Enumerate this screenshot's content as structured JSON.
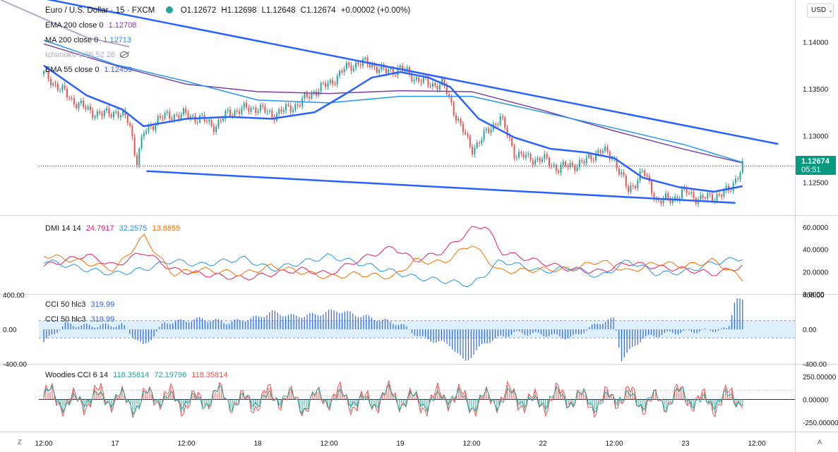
{
  "header": {
    "symbol": "Euro / U.S. Dollar · 15 · FXCM",
    "open": "O1.12672",
    "high": "H1.12698",
    "low": "L1.12648",
    "close": "C1.12674",
    "change": "+0.00002 (+0.00%)",
    "currency": "USD",
    "currency_caret": "⌄"
  },
  "indicators": {
    "ema200": {
      "label": "EMA 200 close 0",
      "value": "1.12708",
      "color": "#7b3fa8"
    },
    "ma200": {
      "label": "MA 200 close 0",
      "value": "1.12713",
      "color": "#2196f3"
    },
    "ichimoku": {
      "label": "Ichimoku 9 26 52 26",
      "color": "#b8a6c8"
    },
    "ema55": {
      "label": "EMA 55 close 0",
      "value": "1.12459",
      "color": "#2962ff"
    },
    "dmi": {
      "label": "DMI 14 14",
      "adx": "24.7917",
      "plus_di": "32.2575",
      "minus_di": "13.6855"
    },
    "cci1": {
      "label": "CCI 50 hlc3",
      "value": "319.99"
    },
    "cci2": {
      "label": "CCI 50 hlc3",
      "value": "319.99"
    },
    "woodies": {
      "label": "Woodies CCI 6 14",
      "v1": "118.35814",
      "v2": "72.19796",
      "v3": "118.35814"
    }
  },
  "price_badge": {
    "price": "1.12674",
    "countdown": "05:51",
    "color": "#089981"
  },
  "bottom_corners": {
    "left": "Z",
    "right": "A"
  },
  "chart_data": [
    {
      "type": "line",
      "name": "price",
      "ylim": [
        1.1215,
        1.1445
      ],
      "y_ticks": [
        "1.14000",
        "1.13500",
        "1.13000",
        "1.12500"
      ],
      "y_tick_values": [
        1.14,
        1.135,
        1.13,
        1.125
      ],
      "x_ticks": [
        "12:00",
        "17",
        "12:00",
        "18",
        "12:00",
        "19",
        "12:00",
        "22",
        "12:00",
        "23",
        "12:00"
      ],
      "x_tick_values": [
        0,
        0.5,
        1,
        1.5,
        2,
        2.5,
        3,
        3.5,
        4,
        4.5,
        5
      ],
      "x_range": [
        0,
        5.05
      ],
      "x_last": 4.9,
      "series": [
        {
          "role": "close",
          "color": "#ef5350",
          "x": [
            0,
            0.1,
            0.2,
            0.3,
            0.4,
            0.5,
            0.6,
            0.65,
            0.7,
            0.8,
            0.9,
            1.0,
            1.1,
            1.2,
            1.3,
            1.4,
            1.5,
            1.6,
            1.7,
            1.8,
            1.9,
            2.0,
            2.1,
            2.2,
            2.3,
            2.4,
            2.5,
            2.6,
            2.7,
            2.8,
            2.9,
            3.0,
            3.1,
            3.2,
            3.3,
            3.4,
            3.5,
            3.6,
            3.7,
            3.8,
            3.9,
            4.0,
            4.1,
            4.2,
            4.3,
            4.4,
            4.5,
            4.6,
            4.7,
            4.8,
            4.9
          ],
          "values": [
            1.1366,
            1.1352,
            1.1338,
            1.1328,
            1.1322,
            1.1326,
            1.1315,
            1.1272,
            1.1302,
            1.1318,
            1.1322,
            1.1322,
            1.1318,
            1.131,
            1.1325,
            1.1328,
            1.133,
            1.1322,
            1.1328,
            1.1335,
            1.1348,
            1.1355,
            1.137,
            1.1378,
            1.1376,
            1.1368,
            1.1372,
            1.1362,
            1.1355,
            1.1355,
            1.1318,
            1.1285,
            1.1302,
            1.132,
            1.1282,
            1.1275,
            1.1275,
            1.1265,
            1.1268,
            1.1272,
            1.1285,
            1.1275,
            1.124,
            1.1262,
            1.123,
            1.1232,
            1.124,
            1.1232,
            1.1235,
            1.124,
            1.12674
          ]
        },
        {
          "role": "ema200",
          "color": "#7b3fa8",
          "x": [
            0,
            0.5,
            1,
            1.5,
            2,
            2.5,
            3,
            3.5,
            4,
            4.5,
            4.9
          ],
          "values": [
            1.1398,
            1.1375,
            1.1355,
            1.1347,
            1.1345,
            1.1348,
            1.1347,
            1.1327,
            1.1305,
            1.1285,
            1.12708
          ]
        },
        {
          "role": "ma200",
          "color": "#2196f3",
          "x": [
            0,
            0.5,
            1,
            1.5,
            2,
            2.5,
            3,
            3.5,
            4,
            4.5,
            4.9
          ],
          "values": [
            1.1402,
            1.1376,
            1.1358,
            1.1338,
            1.1335,
            1.1342,
            1.1342,
            1.1325,
            1.1308,
            1.129,
            1.12713
          ]
        },
        {
          "role": "ema55",
          "color": "#2962ff",
          "x": [
            0,
            0.3,
            0.55,
            0.7,
            1,
            1.3,
            1.6,
            1.9,
            2.1,
            2.3,
            2.5,
            2.7,
            2.85,
            3.05,
            3.3,
            3.55,
            3.8,
            4.0,
            4.2,
            4.45,
            4.7,
            4.9
          ],
          "values": [
            1.1375,
            1.1343,
            1.1328,
            1.131,
            1.1318,
            1.132,
            1.1318,
            1.1325,
            1.1343,
            1.1362,
            1.1368,
            1.1362,
            1.1352,
            1.1318,
            1.1298,
            1.1286,
            1.1282,
            1.1276,
            1.1255,
            1.1245,
            1.124,
            1.12459
          ]
        },
        {
          "role": "ichimoku",
          "color": "#b8a6c8",
          "x": [
            -0.3,
            0.3,
            0.6
          ],
          "values": [
            1.1445,
            1.1405,
            1.1395
          ]
        },
        {
          "role": "trendline-upper",
          "color": "#2962ff",
          "x": [
            -0.05,
            5.15
          ],
          "values": [
            1.1448,
            1.1291
          ]
        },
        {
          "role": "trendline-lower",
          "color": "#2962ff",
          "x": [
            0.72,
            4.85
          ],
          "values": [
            1.1262,
            1.1228
          ]
        }
      ]
    },
    {
      "type": "line",
      "name": "dmi",
      "ylim": [
        0,
        70
      ],
      "y_ticks": [
        "60.0000",
        "40.0000",
        "20.0000",
        "0.0000"
      ],
      "y_tick_values": [
        60,
        40,
        20,
        0
      ],
      "series": [
        {
          "name": "ADX",
          "color": "#e91e63",
          "x": [
            0,
            0.3,
            0.5,
            0.7,
            0.9,
            1.1,
            1.4,
            1.6,
            1.8,
            2.0,
            2.2,
            2.45,
            2.6,
            2.8,
            3.0,
            3.1,
            3.2,
            3.5,
            3.7,
            3.9,
            4.1,
            4.3,
            4.5,
            4.7,
            4.9
          ],
          "values": [
            25,
            35,
            25,
            38,
            22,
            18,
            14,
            18,
            22,
            18,
            30,
            42,
            30,
            38,
            58,
            62,
            38,
            28,
            22,
            20,
            28,
            24,
            22,
            18,
            24.8
          ]
        },
        {
          "name": "+DI",
          "color": "#2196f3",
          "x": [
            0,
            0.3,
            0.5,
            0.7,
            0.9,
            1.1,
            1.4,
            1.6,
            1.8,
            2.0,
            2.2,
            2.45,
            2.6,
            2.8,
            3.0,
            3.1,
            3.2,
            3.5,
            3.7,
            3.9,
            4.1,
            4.3,
            4.5,
            4.7,
            4.9
          ],
          "values": [
            30,
            22,
            18,
            22,
            30,
            26,
            32,
            22,
            28,
            34,
            28,
            20,
            15,
            12,
            8,
            18,
            30,
            20,
            24,
            15,
            30,
            18,
            20,
            28,
            32.3
          ]
        },
        {
          "name": "-DI",
          "color": "#ff6d00",
          "x": [
            0,
            0.3,
            0.5,
            0.7,
            0.9,
            1.1,
            1.4,
            1.6,
            1.8,
            2.0,
            2.2,
            2.45,
            2.6,
            2.8,
            3.0,
            3.1,
            3.2,
            3.5,
            3.7,
            3.9,
            4.1,
            4.3,
            4.5,
            4.7,
            4.9
          ],
          "values": [
            35,
            28,
            22,
            52,
            18,
            22,
            18,
            25,
            20,
            15,
            18,
            15,
            30,
            28,
            45,
            32,
            20,
            22,
            22,
            30,
            20,
            28,
            25,
            30,
            13.7
          ]
        }
      ]
    },
    {
      "type": "bar",
      "name": "cci",
      "ylim": [
        -400,
        400
      ],
      "y_ticks": [
        "400.00",
        "0.00",
        "-400.00"
      ],
      "y_tick_values": [
        400,
        0,
        -400
      ],
      "band": [
        -100,
        100
      ],
      "series": [
        {
          "name": "CCI",
          "color": "#2962ff",
          "x": [
            0,
            0.15,
            0.3,
            0.55,
            0.7,
            0.85,
            1.0,
            1.1,
            1.3,
            1.5,
            1.6,
            1.75,
            1.9,
            2.05,
            2.25,
            2.5,
            2.65,
            2.85,
            2.95,
            3.1,
            3.3,
            3.5,
            3.7,
            3.9,
            4.0,
            4.05,
            4.2,
            4.4,
            4.6,
            4.8,
            4.85,
            4.9
          ],
          "values": [
            -150,
            60,
            40,
            50,
            -200,
            80,
            100,
            120,
            80,
            140,
            200,
            150,
            170,
            220,
            150,
            60,
            -100,
            -180,
            -380,
            -150,
            -40,
            -60,
            -100,
            80,
            120,
            -350,
            -100,
            -40,
            -20,
            0,
            380,
            319.99
          ]
        }
      ]
    },
    {
      "type": "bar",
      "name": "woodies_cci",
      "ylim": [
        -350,
        380
      ],
      "y_ticks": [
        "250.00000",
        "0.00000",
        "-250.00000"
      ],
      "y_tick_values": [
        250,
        0,
        -250
      ],
      "series": [
        {
          "name": "Woodies CCI",
          "color": "#26a69a"
        }
      ]
    }
  ]
}
